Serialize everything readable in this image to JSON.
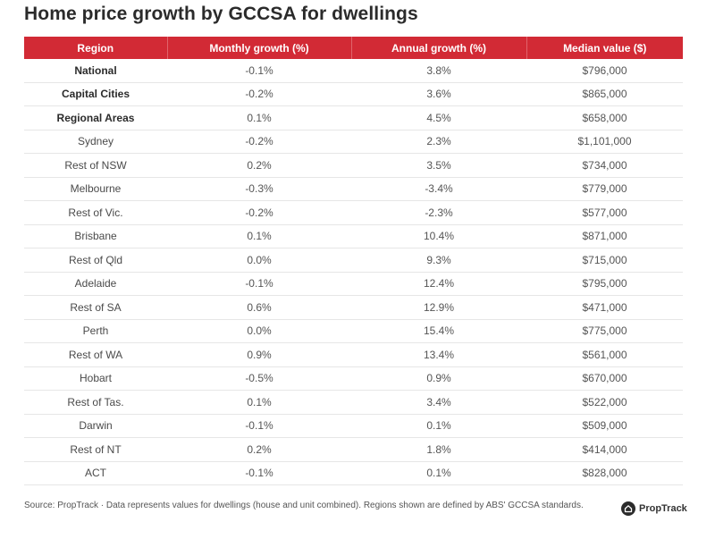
{
  "title": "Home price growth by GCCSA for dwellings",
  "chart_data": {
    "type": "table",
    "title": "Home price growth by GCCSA for dwellings",
    "columns": [
      "Region",
      "Monthly growth (%)",
      "Annual growth (%)",
      "Median value ($)"
    ],
    "rows": [
      {
        "region": "National",
        "monthly": "-0.1%",
        "annual": "3.8%",
        "median": "$796,000",
        "bold": true
      },
      {
        "region": "Capital Cities",
        "monthly": "-0.2%",
        "annual": "3.6%",
        "median": "$865,000",
        "bold": true
      },
      {
        "region": "Regional Areas",
        "monthly": "0.1%",
        "annual": "4.5%",
        "median": "$658,000",
        "bold": true
      },
      {
        "region": "Sydney",
        "monthly": "-0.2%",
        "annual": "2.3%",
        "median": "$1,101,000",
        "bold": false
      },
      {
        "region": "Rest of NSW",
        "monthly": "0.2%",
        "annual": "3.5%",
        "median": "$734,000",
        "bold": false
      },
      {
        "region": "Melbourne",
        "monthly": "-0.3%",
        "annual": "-3.4%",
        "median": "$779,000",
        "bold": false
      },
      {
        "region": "Rest of Vic.",
        "monthly": "-0.2%",
        "annual": "-2.3%",
        "median": "$577,000",
        "bold": false
      },
      {
        "region": "Brisbane",
        "monthly": "0.1%",
        "annual": "10.4%",
        "median": "$871,000",
        "bold": false
      },
      {
        "region": "Rest of Qld",
        "monthly": "0.0%",
        "annual": "9.3%",
        "median": "$715,000",
        "bold": false
      },
      {
        "region": "Adelaide",
        "monthly": "-0.1%",
        "annual": "12.4%",
        "median": "$795,000",
        "bold": false
      },
      {
        "region": "Rest of SA",
        "monthly": "0.6%",
        "annual": "12.9%",
        "median": "$471,000",
        "bold": false
      },
      {
        "region": "Perth",
        "monthly": "0.0%",
        "annual": "15.4%",
        "median": "$775,000",
        "bold": false
      },
      {
        "region": "Rest of WA",
        "monthly": "0.9%",
        "annual": "13.4%",
        "median": "$561,000",
        "bold": false
      },
      {
        "region": "Hobart",
        "monthly": "-0.5%",
        "annual": "0.9%",
        "median": "$670,000",
        "bold": false
      },
      {
        "region": "Rest of Tas.",
        "monthly": "0.1%",
        "annual": "3.4%",
        "median": "$522,000",
        "bold": false
      },
      {
        "region": "Darwin",
        "monthly": "-0.1%",
        "annual": "0.1%",
        "median": "$509,000",
        "bold": false
      },
      {
        "region": "Rest of NT",
        "monthly": "0.2%",
        "annual": "1.8%",
        "median": "$414,000",
        "bold": false
      },
      {
        "region": "ACT",
        "monthly": "-0.1%",
        "annual": "0.1%",
        "median": "$828,000",
        "bold": false
      }
    ]
  },
  "colors": {
    "header_bg": "#d22a35",
    "header_text": "#ffffff"
  },
  "footnote": "Source: PropTrack · Data represents values for dwellings (house and unit combined). Regions shown are defined by ABS' GCCSA standards.",
  "logo": {
    "icon": "house-icon",
    "text": "PropTrack"
  }
}
